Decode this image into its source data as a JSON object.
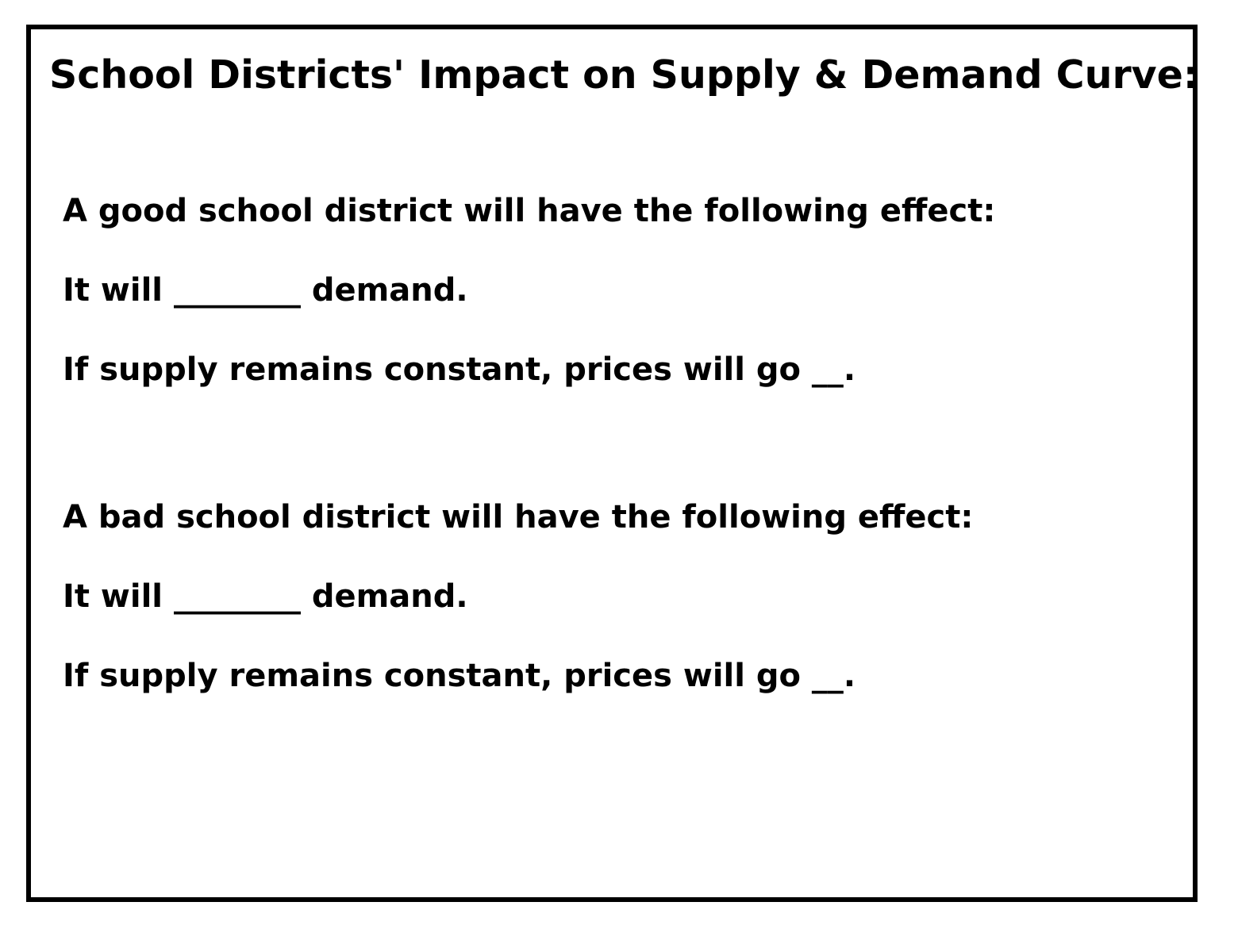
{
  "title": "School Districts' Impact on Supply & Demand Curve:",
  "sections": [
    {
      "heading": "A good school district will have the following effect:",
      "demand_line": "It will ________ demand.",
      "price_line": "If supply remains constant, prices will go __."
    },
    {
      "heading": "A bad school district will have the following effect:",
      "demand_line": "It will ________ demand.",
      "price_line": "If supply remains constant, prices will go __."
    }
  ]
}
